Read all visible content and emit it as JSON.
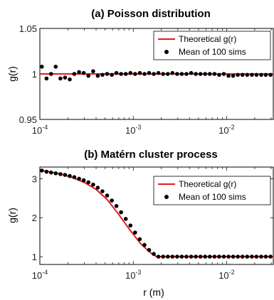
{
  "chart_data": [
    {
      "type": "scatter",
      "title": "(a) Poisson distribution",
      "xlabel": "",
      "ylabel": "g(r)",
      "xscale": "log",
      "xlim": [
        0.0001,
        0.0316
      ],
      "ylim": [
        0.95,
        1.05
      ],
      "y_ticks": [
        "0.95",
        "1",
        "1.05"
      ],
      "legend": {
        "placement": "top-right",
        "line_label": "Theoretical g(r)",
        "marker_label": "Mean of 100 sims"
      },
      "theoretical_line": {
        "name": "Theoretical g(r)",
        "color": "#e41a1c",
        "x": [
          0.0001,
          0.0316
        ],
        "y": [
          1.0,
          1.0
        ]
      },
      "series": [
        {
          "name": "Mean of 100 sims",
          "color": "#000000",
          "x": [
            0.000105,
            0.000118,
            0.000132,
            0.000148,
            0.000166,
            0.000186,
            0.000209,
            0.000234,
            0.000263,
            0.000295,
            0.000331,
            0.000372,
            0.000417,
            0.000468,
            0.000525,
            0.000589,
            0.000661,
            0.000741,
            0.000832,
            0.000933,
            0.001047,
            0.001175,
            0.001318,
            0.001479,
            0.00166,
            0.001862,
            0.002089,
            0.002344,
            0.00263,
            0.002951,
            0.003311,
            0.003715,
            0.004169,
            0.004677,
            0.005248,
            0.005888,
            0.006607,
            0.007413,
            0.008318,
            0.009333,
            0.010471,
            0.011749,
            0.013183,
            0.014791,
            0.016596,
            0.018621,
            0.020893,
            0.023442,
            0.026303,
            0.029512
          ],
          "y": [
            1.008,
            0.995,
            1.0,
            1.008,
            0.995,
            0.996,
            0.994,
            1.0,
            1.002,
            1.001,
            0.998,
            1.003,
            0.998,
            0.999,
            1.0,
            0.999,
            1.001,
            1.0,
            1.0,
            1.001,
            1.0,
            1.001,
            1.0,
            1.001,
            1.0,
            1.001,
            1.0,
            1.0,
            1.001,
            1.0,
            1.0,
            1.0,
            1.001,
            1.0,
            1.0,
            1.0,
            1.0,
            1.0,
            0.999,
            1.0,
            0.998,
            0.998,
            0.999,
            0.999,
            0.999,
            0.999,
            0.999,
            0.999,
            0.999,
            0.999
          ]
        }
      ]
    },
    {
      "type": "scatter",
      "title": "(b) Matérn  cluster process",
      "xlabel": "r (m)",
      "ylabel": "g(r)",
      "xscale": "log",
      "xlim": [
        0.0001,
        0.0316
      ],
      "ylim": [
        0.8,
        3.3
      ],
      "y_ticks": [
        "1",
        "2",
        "3"
      ],
      "legend": {
        "placement": "top-right",
        "line_label": "Theoretical g(r)",
        "marker_label": "Mean of 100 sims"
      },
      "theoretical_line": {
        "name": "Theoretical g(r)",
        "color": "#e41a1c",
        "x": [
          0.0001,
          0.000132,
          0.000174,
          0.000229,
          0.000302,
          0.000398,
          0.000525,
          0.000692,
          0.000912,
          0.001202,
          0.001585,
          0.001778,
          0.0316
        ],
        "y": [
          3.22,
          3.17,
          3.11,
          3.02,
          2.9,
          2.73,
          2.47,
          2.1,
          1.7,
          1.33,
          1.07,
          1.0,
          1.0
        ]
      },
      "series": [
        {
          "name": "Mean of 100 sims",
          "color": "#000000",
          "x": [
            0.000105,
            0.000118,
            0.000132,
            0.000148,
            0.000166,
            0.000186,
            0.000209,
            0.000234,
            0.000263,
            0.000295,
            0.000331,
            0.000372,
            0.000417,
            0.000468,
            0.000525,
            0.000589,
            0.000661,
            0.000741,
            0.000832,
            0.000933,
            0.001047,
            0.001175,
            0.001318,
            0.001479,
            0.00166,
            0.001862,
            0.002089,
            0.002344,
            0.00263,
            0.002951,
            0.003311,
            0.003715,
            0.004169,
            0.004677,
            0.005248,
            0.005888,
            0.006607,
            0.007413,
            0.008318,
            0.009333,
            0.010471,
            0.011749,
            0.013183,
            0.014791,
            0.016596,
            0.018621,
            0.020893,
            0.023442,
            0.026303,
            0.029512
          ],
          "y": [
            3.21,
            3.18,
            3.16,
            3.14,
            3.12,
            3.1,
            3.07,
            3.04,
            3.0,
            2.96,
            2.91,
            2.85,
            2.77,
            2.68,
            2.57,
            2.44,
            2.3,
            2.14,
            1.97,
            1.8,
            1.62,
            1.45,
            1.3,
            1.17,
            1.07,
            1.0,
            1.0,
            1.0,
            1.0,
            1.0,
            1.0,
            1.0,
            1.0,
            1.0,
            1.0,
            1.0,
            1.0,
            1.0,
            1.0,
            1.0,
            1.0,
            1.0,
            1.0,
            1.0,
            1.0,
            1.0,
            1.0,
            1.0,
            1.0,
            1.0
          ]
        }
      ]
    }
  ],
  "x_tick_labels": [
    {
      "base": "10",
      "exp": "-4"
    },
    {
      "base": "10",
      "exp": "-3"
    },
    {
      "base": "10",
      "exp": "-2"
    }
  ]
}
